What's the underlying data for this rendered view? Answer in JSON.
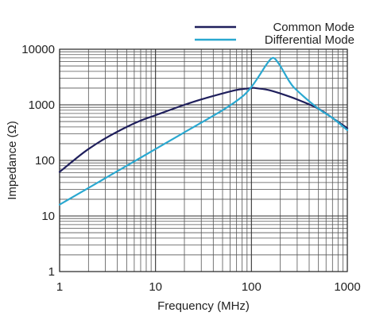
{
  "chart_data": {
    "type": "line",
    "xscale": "log",
    "yscale": "log",
    "xlim": [
      1,
      1000
    ],
    "ylim": [
      1,
      10000
    ],
    "xlabel": "Frequency (MHz)",
    "ylabel": "Impedance (Ω)",
    "xticks": [
      1,
      10,
      100,
      1000
    ],
    "xtick_labels": [
      "1",
      "10",
      "100",
      "1000"
    ],
    "yticks": [
      1,
      10,
      100,
      1000,
      10000
    ],
    "ytick_labels": [
      "1",
      "10",
      "100",
      "1000",
      "10000"
    ],
    "grid": true,
    "legend_position": "top-right",
    "series": [
      {
        "name": "Common Mode",
        "color": "#1f1f5c",
        "x": [
          1,
          1.5,
          2,
          3,
          5,
          7,
          10,
          20,
          30,
          50,
          70,
          100,
          110,
          150,
          200,
          300,
          500,
          700,
          1000
        ],
        "y": [
          62,
          110,
          160,
          250,
          400,
          520,
          650,
          1000,
          1250,
          1600,
          1850,
          2000,
          2000,
          1850,
          1600,
          1250,
          850,
          580,
          380
        ]
      },
      {
        "name": "Differential Mode",
        "color": "#2aa8d0",
        "x": [
          1,
          2,
          5,
          10,
          20,
          50,
          80,
          100,
          120,
          140,
          160,
          175,
          200,
          250,
          300,
          500,
          700,
          1000
        ],
        "y": [
          16,
          32,
          80,
          160,
          320,
          800,
          1400,
          2100,
          3300,
          5000,
          6700,
          6800,
          5000,
          2600,
          1800,
          850,
          580,
          350
        ]
      }
    ]
  }
}
